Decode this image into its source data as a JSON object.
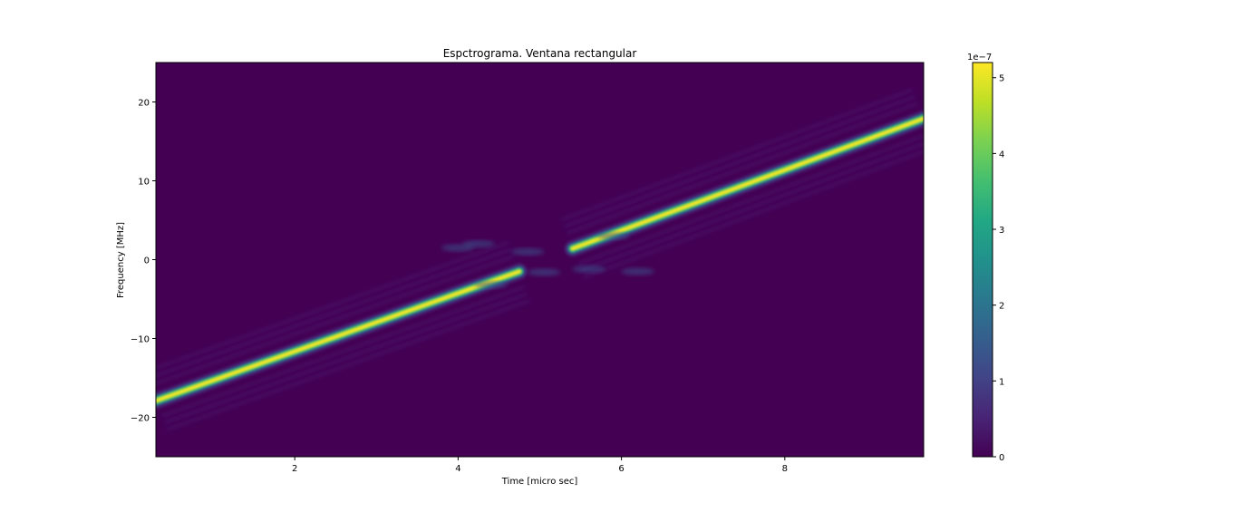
{
  "chart_data": {
    "type": "heatmap",
    "title": "Espctrograma. Ventana rectangular",
    "xlabel": "Time [micro sec]",
    "ylabel": "Frequency [MHz]",
    "xlim": [
      0.3,
      9.7
    ],
    "ylim": [
      -25,
      25
    ],
    "xticks": [
      2,
      4,
      6,
      8
    ],
    "yticks": [
      -20,
      -10,
      0,
      10,
      20
    ],
    "colormap": "viridis",
    "colorbar": {
      "range": [
        0,
        5.2
      ],
      "ticks": [
        0,
        1,
        2,
        3,
        4,
        5
      ],
      "exponent_label": "1e−7"
    },
    "chirp_segments": [
      {
        "t": [
          0.3,
          4.75
        ],
        "f": [
          -17.9,
          -1.5
        ]
      },
      {
        "t": [
          5.4,
          9.7
        ],
        "f": [
          1.4,
          17.9
        ]
      }
    ],
    "peak_value": 5.2,
    "background_color": "#440154"
  }
}
